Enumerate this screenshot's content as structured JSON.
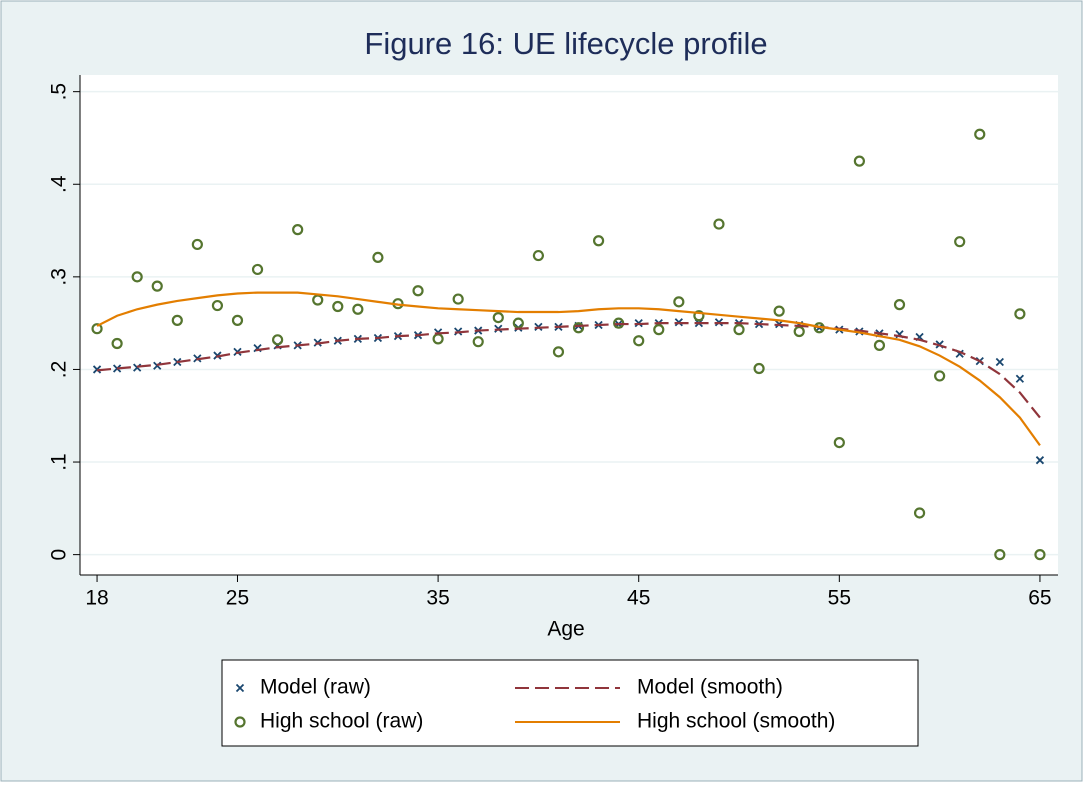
{
  "chart_data": {
    "type": "scatter-line",
    "title": "Figure 16: UE lifecycle profile",
    "x_label": "Age",
    "x": [
      18,
      19,
      20,
      21,
      22,
      23,
      24,
      25,
      26,
      27,
      28,
      29,
      30,
      31,
      32,
      33,
      34,
      35,
      36,
      37,
      38,
      39,
      40,
      41,
      42,
      43,
      44,
      45,
      46,
      47,
      48,
      49,
      50,
      51,
      52,
      53,
      54,
      55,
      56,
      57,
      58,
      59,
      60,
      61,
      62,
      63,
      64,
      65
    ],
    "series": [
      {
        "name": "Model (raw)",
        "kind": "cross",
        "color": "#1a476f",
        "values": [
          0.2,
          0.201,
          0.202,
          0.204,
          0.208,
          0.212,
          0.215,
          0.219,
          0.223,
          0.226,
          0.226,
          0.229,
          0.231,
          0.233,
          0.234,
          0.236,
          0.237,
          0.24,
          0.241,
          0.242,
          0.244,
          0.245,
          0.246,
          0.246,
          0.247,
          0.248,
          0.249,
          0.25,
          0.25,
          0.251,
          0.25,
          0.251,
          0.25,
          0.249,
          0.249,
          0.248,
          0.245,
          0.243,
          0.241,
          0.239,
          0.238,
          0.235,
          0.227,
          0.217,
          0.209,
          0.208,
          0.19,
          0.102
        ]
      },
      {
        "name": "High school (raw)",
        "kind": "circle",
        "color": "#55752f",
        "values": [
          0.244,
          0.228,
          0.3,
          0.29,
          0.253,
          0.335,
          0.269,
          0.253,
          0.308,
          0.232,
          0.351,
          0.275,
          0.268,
          0.265,
          0.321,
          0.271,
          0.285,
          0.233,
          0.276,
          0.23,
          0.256,
          0.25,
          0.323,
          0.219,
          0.245,
          0.339,
          0.25,
          0.231,
          0.243,
          0.273,
          0.258,
          0.357,
          0.243,
          0.201,
          0.263,
          0.241,
          0.245,
          0.121,
          0.425,
          0.226,
          0.27,
          0.045,
          0.193,
          0.338,
          0.454,
          0,
          0.26,
          0
        ]
      },
      {
        "name": "Model (smooth)",
        "kind": "dashed",
        "color": "#90353b",
        "values": [
          0.199,
          0.201,
          0.203,
          0.205,
          0.208,
          0.211,
          0.214,
          0.218,
          0.221,
          0.224,
          0.226,
          0.228,
          0.231,
          0.233,
          0.234,
          0.236,
          0.237,
          0.239,
          0.24,
          0.242,
          0.243,
          0.244,
          0.245,
          0.246,
          0.247,
          0.248,
          0.249,
          0.249,
          0.25,
          0.25,
          0.25,
          0.25,
          0.25,
          0.249,
          0.248,
          0.247,
          0.246,
          0.244,
          0.242,
          0.239,
          0.236,
          0.232,
          0.226,
          0.219,
          0.209,
          0.195,
          0.175,
          0.148
        ]
      },
      {
        "name": "High school (smooth)",
        "kind": "solid",
        "color": "#e37e00",
        "values": [
          0.247,
          0.258,
          0.265,
          0.27,
          0.274,
          0.277,
          0.28,
          0.282,
          0.283,
          0.283,
          0.283,
          0.281,
          0.279,
          0.276,
          0.273,
          0.27,
          0.268,
          0.266,
          0.265,
          0.264,
          0.263,
          0.262,
          0.262,
          0.262,
          0.263,
          0.265,
          0.266,
          0.266,
          0.265,
          0.263,
          0.261,
          0.259,
          0.257,
          0.255,
          0.253,
          0.25,
          0.246,
          0.243,
          0.24,
          0.236,
          0.232,
          0.225,
          0.215,
          0.203,
          0.188,
          0.17,
          0.148,
          0.118
        ]
      }
    ],
    "xlim": [
      17.15,
      65.9
    ],
    "ylim": [
      -0.022,
      0.518
    ],
    "xticks": [
      18,
      25,
      35,
      45,
      55,
      65
    ],
    "yticks": [
      0,
      {
        "value": 0.1,
        "label": ".1"
      },
      {
        "value": 0.2,
        "label": ".2"
      },
      {
        "value": 0.3,
        "label": ".3"
      },
      {
        "value": 0.4,
        "label": ".4"
      },
      {
        "value": 0.5,
        "label": ".5"
      }
    ],
    "grid": true
  }
}
